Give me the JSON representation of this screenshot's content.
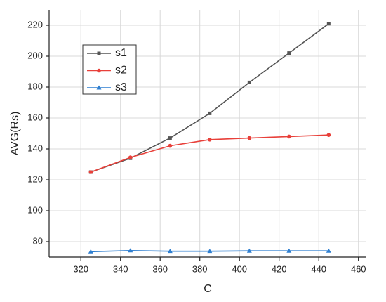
{
  "chart_data": {
    "type": "line",
    "x_label": "C",
    "y_label": "AVG(Rs)",
    "x": [
      325,
      345,
      365,
      385,
      405,
      425,
      445
    ],
    "series": [
      {
        "name": "s1",
        "color": "#555555",
        "marker": "square",
        "values": [
          125,
          134,
          147,
          163,
          183,
          202,
          221
        ]
      },
      {
        "name": "s2",
        "color": "#e8403a",
        "marker": "circle",
        "values": [
          125,
          134.5,
          142,
          146,
          147,
          148,
          149
        ]
      },
      {
        "name": "s3",
        "color": "#2f7fd0",
        "marker": "triangle",
        "values": [
          73.5,
          74.2,
          73.8,
          73.8,
          74,
          74,
          74
        ]
      }
    ],
    "xlim": [
      304,
      464
    ],
    "xticks": [
      320,
      340,
      360,
      380,
      400,
      420,
      440,
      460
    ],
    "ylim": [
      70,
      230
    ],
    "yticks": [
      80,
      100,
      120,
      140,
      160,
      180,
      200,
      220
    ],
    "grid": true,
    "legend": "upper-left"
  }
}
